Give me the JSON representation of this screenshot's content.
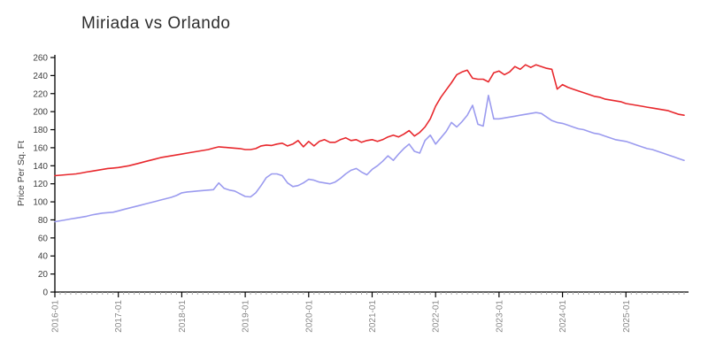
{
  "page": {
    "background": "#ffffff"
  },
  "chart_data": {
    "type": "line",
    "title": "Miriada vs Orlando",
    "xlabel": "",
    "ylabel": "Price Per Sq. Ft",
    "x_start": "2016-01",
    "x_end": "2025-12",
    "frequency": "monthly",
    "x_major_ticks": [
      "2016-01",
      "2017-01",
      "2018-01",
      "2019-01",
      "2020-01",
      "2021-01",
      "2022-01",
      "2023-01",
      "2024-01",
      "2025-01"
    ],
    "y_ticks": [
      0,
      20,
      40,
      60,
      80,
      100,
      120,
      140,
      160,
      180,
      200,
      220,
      240,
      260
    ],
    "ylim": [
      0,
      260
    ],
    "grid": false,
    "legend": "none",
    "axis_color": "#000000",
    "tick_label_color_x": "#888888",
    "tick_label_color_y": "#3d3d3d",
    "series": [
      {
        "name": "Miriada",
        "color": "#e8282d",
        "values": [
          129,
          129.5,
          130,
          130.5,
          131,
          132,
          133,
          134,
          135,
          136,
          137,
          137.5,
          138,
          139,
          140,
          141.5,
          143,
          144.5,
          146,
          147.5,
          149,
          150,
          151,
          152,
          153,
          154,
          155,
          156,
          157,
          158,
          159.5,
          161,
          160.5,
          160,
          159.5,
          159,
          158,
          158,
          159,
          162,
          163,
          162.5,
          164,
          165,
          162,
          164,
          168,
          161,
          167,
          162,
          167,
          169,
          166,
          166,
          169,
          171,
          168,
          169,
          166,
          168,
          169,
          167,
          169,
          172,
          174,
          172,
          175,
          179,
          173,
          177,
          183,
          192,
          206,
          216,
          224,
          232,
          241,
          244,
          246,
          237,
          236,
          236,
          233,
          243,
          245,
          241,
          244,
          250,
          247,
          252,
          249,
          252,
          250,
          248,
          247,
          225,
          230,
          227,
          225,
          223,
          221,
          219,
          217,
          216,
          214,
          213,
          212,
          211,
          209,
          208,
          207,
          206,
          205,
          204,
          203,
          202,
          201,
          199,
          197,
          196
        ]
      },
      {
        "name": "Orlando",
        "color": "#9b9bef",
        "values": [
          78,
          79,
          80,
          81,
          82,
          83,
          84,
          85.5,
          86.5,
          87.5,
          88,
          88.5,
          90,
          91.5,
          93,
          94.5,
          96,
          97.5,
          99,
          100.5,
          102,
          103.5,
          105,
          107,
          110,
          111,
          111.5,
          112,
          112.5,
          113,
          113.5,
          121,
          115,
          113,
          112,
          109,
          106,
          105.5,
          110,
          118,
          127,
          131,
          131,
          129,
          121,
          117,
          118,
          121,
          125,
          124,
          122,
          121,
          120,
          122,
          126,
          131,
          135,
          137,
          133,
          130,
          136,
          140,
          145,
          151,
          146,
          153,
          159,
          164,
          156,
          154,
          168,
          174,
          164,
          171,
          178,
          188,
          183,
          189,
          196,
          207,
          186,
          184,
          218,
          192,
          192,
          193,
          194,
          195,
          196,
          197,
          198,
          199,
          198,
          194,
          190,
          188,
          187,
          185,
          183,
          181,
          180,
          178,
          176,
          175,
          173,
          171,
          169,
          168,
          167,
          165,
          163,
          161,
          159,
          158,
          156,
          154,
          152,
          150,
          148,
          146
        ]
      }
    ]
  }
}
